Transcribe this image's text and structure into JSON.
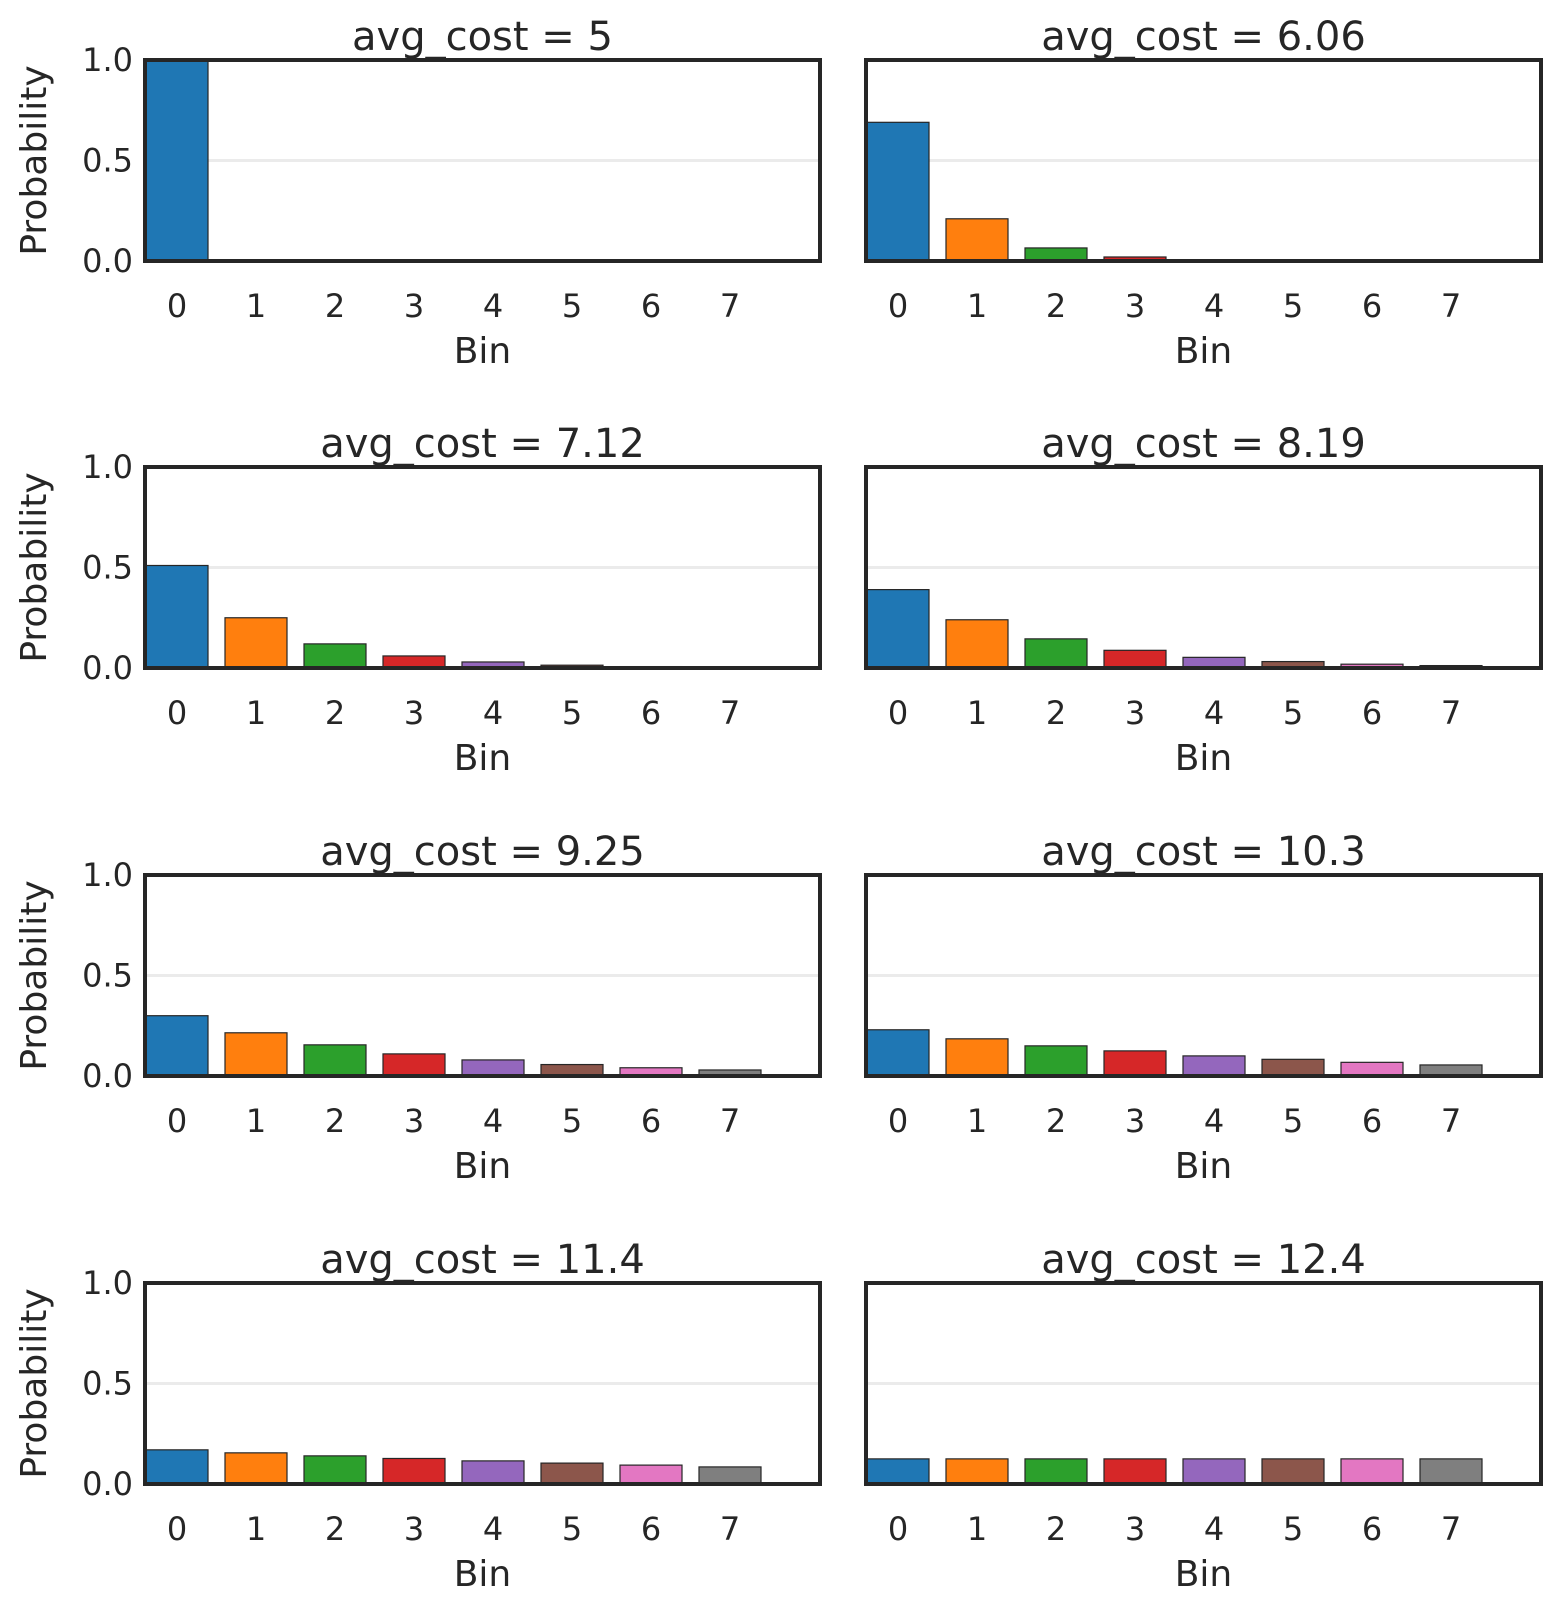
{
  "colors": [
    "#1f77b4",
    "#ff7f0e",
    "#2ca02c",
    "#d62728",
    "#9467bd",
    "#8c564b",
    "#e377c2",
    "#7f7f7f"
  ],
  "chart_data": [
    {
      "type": "bar",
      "title": "avg_cost = 5",
      "xlabel": "Bin",
      "ylabel": "Probability",
      "categories": [
        "0",
        "1",
        "2",
        "3",
        "4",
        "5",
        "6",
        "7"
      ],
      "values": [
        1.0,
        0,
        0,
        0,
        0,
        0,
        0,
        0
      ],
      "ylim": [
        0,
        1.0
      ],
      "yticks": [
        "0.0",
        "0.5",
        "1.0"
      ]
    },
    {
      "type": "bar",
      "title": "avg_cost = 6.06",
      "xlabel": "Bin",
      "ylabel": "",
      "categories": [
        "0",
        "1",
        "2",
        "3",
        "4",
        "5",
        "6",
        "7"
      ],
      "values": [
        0.69,
        0.21,
        0.065,
        0.02,
        0.006,
        0.002,
        0.0006,
        0.0002
      ],
      "ylim": [
        0,
        1.0
      ],
      "yticks": []
    },
    {
      "type": "bar",
      "title": "avg_cost = 7.12",
      "xlabel": "Bin",
      "ylabel": "Probability",
      "categories": [
        "0",
        "1",
        "2",
        "3",
        "4",
        "5",
        "6",
        "7"
      ],
      "values": [
        0.51,
        0.25,
        0.12,
        0.06,
        0.03,
        0.014,
        0.007,
        0.003
      ],
      "ylim": [
        0,
        1.0
      ],
      "yticks": [
        "0.0",
        "0.5",
        "1.0"
      ]
    },
    {
      "type": "bar",
      "title": "avg_cost = 8.19",
      "xlabel": "Bin",
      "ylabel": "",
      "categories": [
        "0",
        "1",
        "2",
        "3",
        "4",
        "5",
        "6",
        "7"
      ],
      "values": [
        0.39,
        0.24,
        0.145,
        0.088,
        0.053,
        0.032,
        0.019,
        0.012
      ],
      "ylim": [
        0,
        1.0
      ],
      "yticks": []
    },
    {
      "type": "bar",
      "title": "avg_cost = 9.25",
      "xlabel": "Bin",
      "ylabel": "Probability",
      "categories": [
        "0",
        "1",
        "2",
        "3",
        "4",
        "5",
        "6",
        "7"
      ],
      "values": [
        0.3,
        0.215,
        0.155,
        0.11,
        0.08,
        0.057,
        0.041,
        0.03
      ],
      "ylim": [
        0,
        1.0
      ],
      "yticks": [
        "0.0",
        "0.5",
        "1.0"
      ]
    },
    {
      "type": "bar",
      "title": "avg_cost = 10.3",
      "xlabel": "Bin",
      "ylabel": "",
      "categories": [
        "0",
        "1",
        "2",
        "3",
        "4",
        "5",
        "6",
        "7"
      ],
      "values": [
        0.23,
        0.185,
        0.15,
        0.125,
        0.1,
        0.083,
        0.068,
        0.055
      ],
      "ylim": [
        0,
        1.0
      ],
      "yticks": []
    },
    {
      "type": "bar",
      "title": "avg_cost = 11.4",
      "xlabel": "Bin",
      "ylabel": "Probability",
      "categories": [
        "0",
        "1",
        "2",
        "3",
        "4",
        "5",
        "6",
        "7"
      ],
      "values": [
        0.17,
        0.155,
        0.14,
        0.127,
        0.115,
        0.104,
        0.094,
        0.085
      ],
      "ylim": [
        0,
        1.0
      ],
      "yticks": [
        "0.0",
        "0.5",
        "1.0"
      ]
    },
    {
      "type": "bar",
      "title": "avg_cost = 12.4",
      "xlabel": "Bin",
      "ylabel": "",
      "categories": [
        "0",
        "1",
        "2",
        "3",
        "4",
        "5",
        "6",
        "7"
      ],
      "values": [
        0.125,
        0.125,
        0.125,
        0.125,
        0.125,
        0.125,
        0.125,
        0.125
      ],
      "ylim": [
        0,
        1.0
      ],
      "yticks": []
    }
  ]
}
